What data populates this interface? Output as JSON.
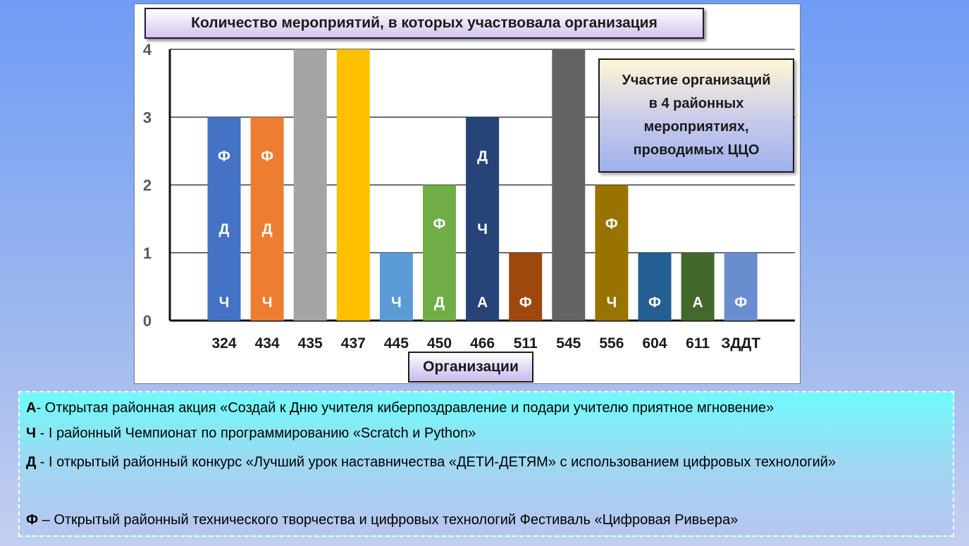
{
  "chart_data": {
    "type": "bar",
    "title": "Количество мероприятий, в которых участвовала организация",
    "xlabel": "Организации",
    "ylabel": "",
    "ylim": [
      0,
      4
    ],
    "yticks": [
      "0",
      "1",
      "2",
      "3",
      "4"
    ],
    "grid": true,
    "categories": [
      "324",
      "434",
      "435",
      "437",
      "445",
      "450",
      "466",
      "511",
      "545",
      "556",
      "604",
      "611",
      "ЗДДТ"
    ],
    "values": [
      3,
      3,
      4,
      4,
      1,
      2,
      3,
      1,
      4,
      2,
      1,
      1,
      1
    ],
    "colors": [
      "#4472c4",
      "#ed7d31",
      "#a5a5a5",
      "#ffc000",
      "#5b9bd5",
      "#70ad47",
      "#264478",
      "#9e480e",
      "#636363",
      "#997300",
      "#255e91",
      "#43682b",
      "#698ed0"
    ],
    "bar_letters": [
      [
        "Ч",
        "Д",
        "Ф"
      ],
      [
        "Ч",
        "Д",
        "Ф"
      ],
      [],
      [],
      [
        "Ч"
      ],
      [
        "Д",
        "Ф"
      ],
      [
        "А",
        "Ч",
        "Д"
      ],
      [
        "Ф"
      ],
      [],
      [
        "Ч",
        "Ф"
      ],
      [
        "Ф"
      ],
      [
        "А"
      ],
      [
        "Ф"
      ]
    ],
    "annotation": [
      "Участие организаций",
      "в 4 районных",
      "мероприятиях,",
      "проводимых ЦЦО"
    ]
  },
  "legend": [
    {
      "key": "А",
      "text": "- Открытая районная акция «Создай к Дню учителя киберпоздравление и подари учителю приятное мгновение»"
    },
    {
      "key": "Ч",
      "text": " - I районный Чемпионат по программированию «Scratch и Python»"
    },
    {
      "key": "Д",
      "text": " - I открытый районный конкурс «Лучший урок наставничества «ДЕТИ-ДЕТЯМ» с использованием цифровых технологий»"
    },
    {
      "key": "Ф",
      "text": " – Открытый районный технического творчества и цифровых технологий Фестиваль «Цифровая Ривьера»"
    }
  ]
}
